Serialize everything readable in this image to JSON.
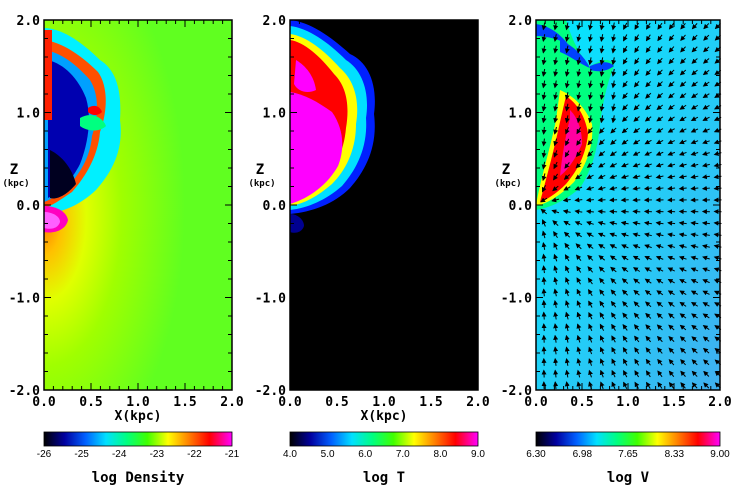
{
  "figure": {
    "panels": [
      {
        "id": "density",
        "ylabel": "Z",
        "yunit": "(kpc)",
        "xlabel": "X(kpc)",
        "colorbar_label": "log Density",
        "colorbar_ticks": [
          "-26",
          "-25",
          "-24",
          "-23",
          "-22",
          "-21"
        ],
        "colorbar_values": [
          -26,
          -25,
          -24,
          -23,
          -22,
          -21
        ],
        "colormap": [
          "#000000",
          "#0000a0",
          "#0060ff",
          "#00e0ff",
          "#00ff80",
          "#40ff00",
          "#ffff00",
          "#ff8000",
          "#ff0000",
          "#ff00ff"
        ]
      },
      {
        "id": "temperature",
        "ylabel": "Z",
        "yunit": "(kpc)",
        "xlabel": "X(kpc)",
        "colorbar_label": "log T",
        "colorbar_ticks": [
          "4.0",
          "5.0",
          "6.0",
          "7.0",
          "8.0",
          "9.0"
        ],
        "colorbar_values": [
          4.0,
          5.0,
          6.0,
          7.0,
          8.0,
          9.0
        ],
        "colormap": [
          "#000000",
          "#0000a0",
          "#0060ff",
          "#00e0ff",
          "#00ff80",
          "#40ff00",
          "#ffff00",
          "#ff8000",
          "#ff0000",
          "#ff00ff"
        ]
      },
      {
        "id": "velocity",
        "ylabel": "Z",
        "yunit": "(kpc)",
        "xlabel": "",
        "colorbar_label": "log V",
        "colorbar_ticks": [
          "6.30",
          "6.98",
          "7.65",
          "8.33",
          "9.00"
        ],
        "colorbar_values": [
          6.3,
          6.98,
          7.65,
          8.33,
          9.0
        ],
        "colormap": [
          "#000000",
          "#0000a0",
          "#0060ff",
          "#00e0ff",
          "#00ff80",
          "#40ff00",
          "#ffff00",
          "#ff8000",
          "#ff0000",
          "#ff00ff"
        ]
      }
    ],
    "x_ticks": [
      "0.0",
      "0.5",
      "1.0",
      "1.5",
      "2.0"
    ],
    "x_tick_values": [
      0.0,
      0.5,
      1.0,
      1.5,
      2.0
    ],
    "y_ticks": [
      "2.0",
      "1.0",
      "0.0",
      "-1.0",
      "-2.0"
    ],
    "y_tick_values": [
      2.0,
      1.0,
      0.0,
      -1.0,
      -2.0
    ],
    "xlim": [
      0.0,
      2.0
    ],
    "ylim": [
      -2.0,
      2.0
    ]
  },
  "chart_data": [
    {
      "type": "heatmap",
      "quantity": "log Density",
      "xlim": [
        0.0,
        2.0
      ],
      "ylim": [
        -2.0,
        2.0
      ],
      "color_range": [
        -26,
        -21
      ],
      "x_ticks": [
        0.0,
        0.5,
        1.0,
        1.5,
        2.0
      ],
      "y_ticks": [
        -2.0,
        -1.0,
        0.0,
        1.0,
        2.0
      ]
    },
    {
      "type": "heatmap",
      "quantity": "log T",
      "xlim": [
        0.0,
        2.0
      ],
      "ylim": [
        -2.0,
        2.0
      ],
      "color_range": [
        4.0,
        9.0
      ],
      "x_ticks": [
        0.0,
        0.5,
        1.0,
        1.5,
        2.0
      ],
      "y_ticks": [
        -2.0,
        -1.0,
        0.0,
        1.0,
        2.0
      ]
    },
    {
      "type": "heatmap",
      "quantity": "log V",
      "xlim": [
        0.0,
        2.0
      ],
      "ylim": [
        -2.0,
        2.0
      ],
      "color_range": [
        6.3,
        9.0
      ],
      "x_ticks": [
        0.0,
        0.5,
        1.0,
        1.5,
        2.0
      ],
      "y_ticks": [
        -2.0,
        -1.0,
        0.0,
        1.0,
        2.0
      ]
    }
  ]
}
